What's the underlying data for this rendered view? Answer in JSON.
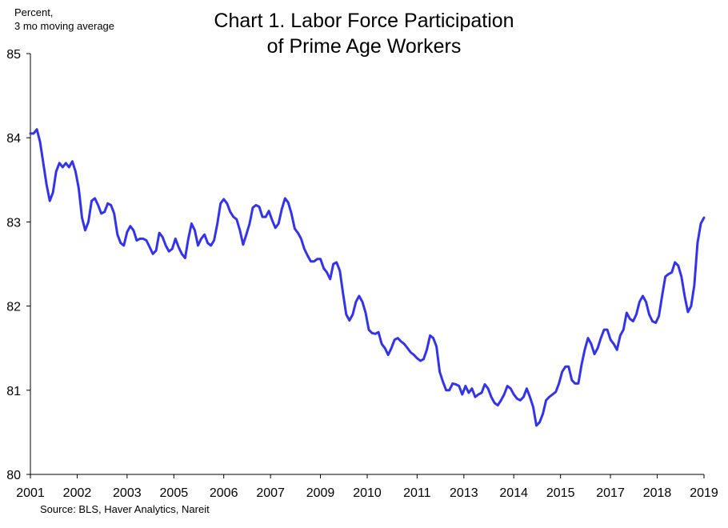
{
  "chart_data": {
    "type": "line",
    "title_lines": [
      "Chart 1. Labor Force Participation",
      "of Prime Age Workers"
    ],
    "unit_lines": [
      "Percent,",
      "3 mo moving average"
    ],
    "source": "Source: BLS, Haver Analytics, Nareit",
    "ylim": [
      80,
      85
    ],
    "yticks": [
      80,
      81,
      82,
      83,
      84,
      85
    ],
    "ytick_labels": [
      "80",
      "81",
      "82",
      "83",
      "84",
      "85"
    ],
    "xlim": [
      0,
      216
    ],
    "xtick_labels": [
      "2001",
      "2002",
      "2003",
      "2005",
      "2006",
      "2007",
      "2009",
      "2010",
      "2011",
      "2013",
      "2014",
      "2015",
      "2017",
      "2018",
      "2019"
    ],
    "xtick_positions": [
      0,
      15,
      31,
      46,
      62,
      77,
      93,
      108,
      124,
      139,
      155,
      170,
      186,
      201,
      216
    ],
    "grid": false,
    "legend": "none",
    "line_color": "#3333EE",
    "series": [
      {
        "values": [
          84.05,
          84.05,
          84.1,
          83.95,
          83.7,
          83.45,
          83.25,
          83.35,
          83.6,
          83.7,
          83.65,
          83.7,
          83.65,
          83.72,
          83.6,
          83.4,
          83.05,
          82.9,
          83.0,
          83.25,
          83.28,
          83.2,
          83.1,
          83.12,
          83.22,
          83.2,
          83.1,
          82.85,
          82.75,
          82.72,
          82.88,
          82.95,
          82.9,
          82.78,
          82.8,
          82.8,
          82.78,
          82.7,
          82.62,
          82.66,
          82.87,
          82.82,
          82.72,
          82.65,
          82.68,
          82.8,
          82.7,
          82.62,
          82.57,
          82.8,
          82.98,
          82.9,
          82.72,
          82.8,
          82.85,
          82.75,
          82.72,
          82.78,
          82.98,
          83.22,
          83.27,
          83.22,
          83.12,
          83.06,
          83.03,
          82.9,
          82.73,
          82.85,
          82.98,
          83.17,
          83.2,
          83.18,
          83.06,
          83.06,
          83.13,
          83.02,
          82.93,
          82.98,
          83.15,
          83.28,
          83.23,
          83.1,
          82.92,
          82.87,
          82.8,
          82.68,
          82.6,
          82.53,
          82.53,
          82.56,
          82.56,
          82.45,
          82.4,
          82.32,
          82.5,
          82.52,
          82.42,
          82.15,
          81.9,
          81.83,
          81.9,
          82.05,
          82.12,
          82.05,
          81.92,
          81.72,
          81.68,
          81.67,
          81.69,
          81.55,
          81.5,
          81.42,
          81.5,
          81.6,
          81.62,
          81.58,
          81.55,
          81.5,
          81.45,
          81.42,
          81.38,
          81.35,
          81.37,
          81.48,
          81.65,
          81.62,
          81.52,
          81.22,
          81.1,
          81.0,
          81.0,
          81.08,
          81.07,
          81.05,
          80.95,
          81.05,
          80.97,
          81.02,
          80.92,
          80.95,
          80.97,
          81.07,
          81.02,
          80.92,
          80.85,
          80.82,
          80.88,
          80.95,
          81.05,
          81.02,
          80.95,
          80.9,
          80.88,
          80.92,
          81.02,
          80.92,
          80.8,
          80.58,
          80.62,
          80.72,
          80.88,
          80.92,
          80.95,
          80.98,
          81.08,
          81.22,
          81.28,
          81.28,
          81.12,
          81.08,
          81.08,
          81.3,
          81.48,
          81.62,
          81.55,
          81.43,
          81.5,
          81.62,
          81.72,
          81.72,
          81.6,
          81.55,
          81.48,
          81.65,
          81.72,
          81.92,
          81.85,
          81.82,
          81.9,
          82.05,
          82.12,
          82.05,
          81.9,
          81.82,
          81.8,
          81.88,
          82.12,
          82.35,
          82.38,
          82.4,
          82.52,
          82.48,
          82.35,
          82.12,
          81.93,
          82.0,
          82.25,
          82.75,
          82.98,
          83.05
        ]
      }
    ]
  }
}
